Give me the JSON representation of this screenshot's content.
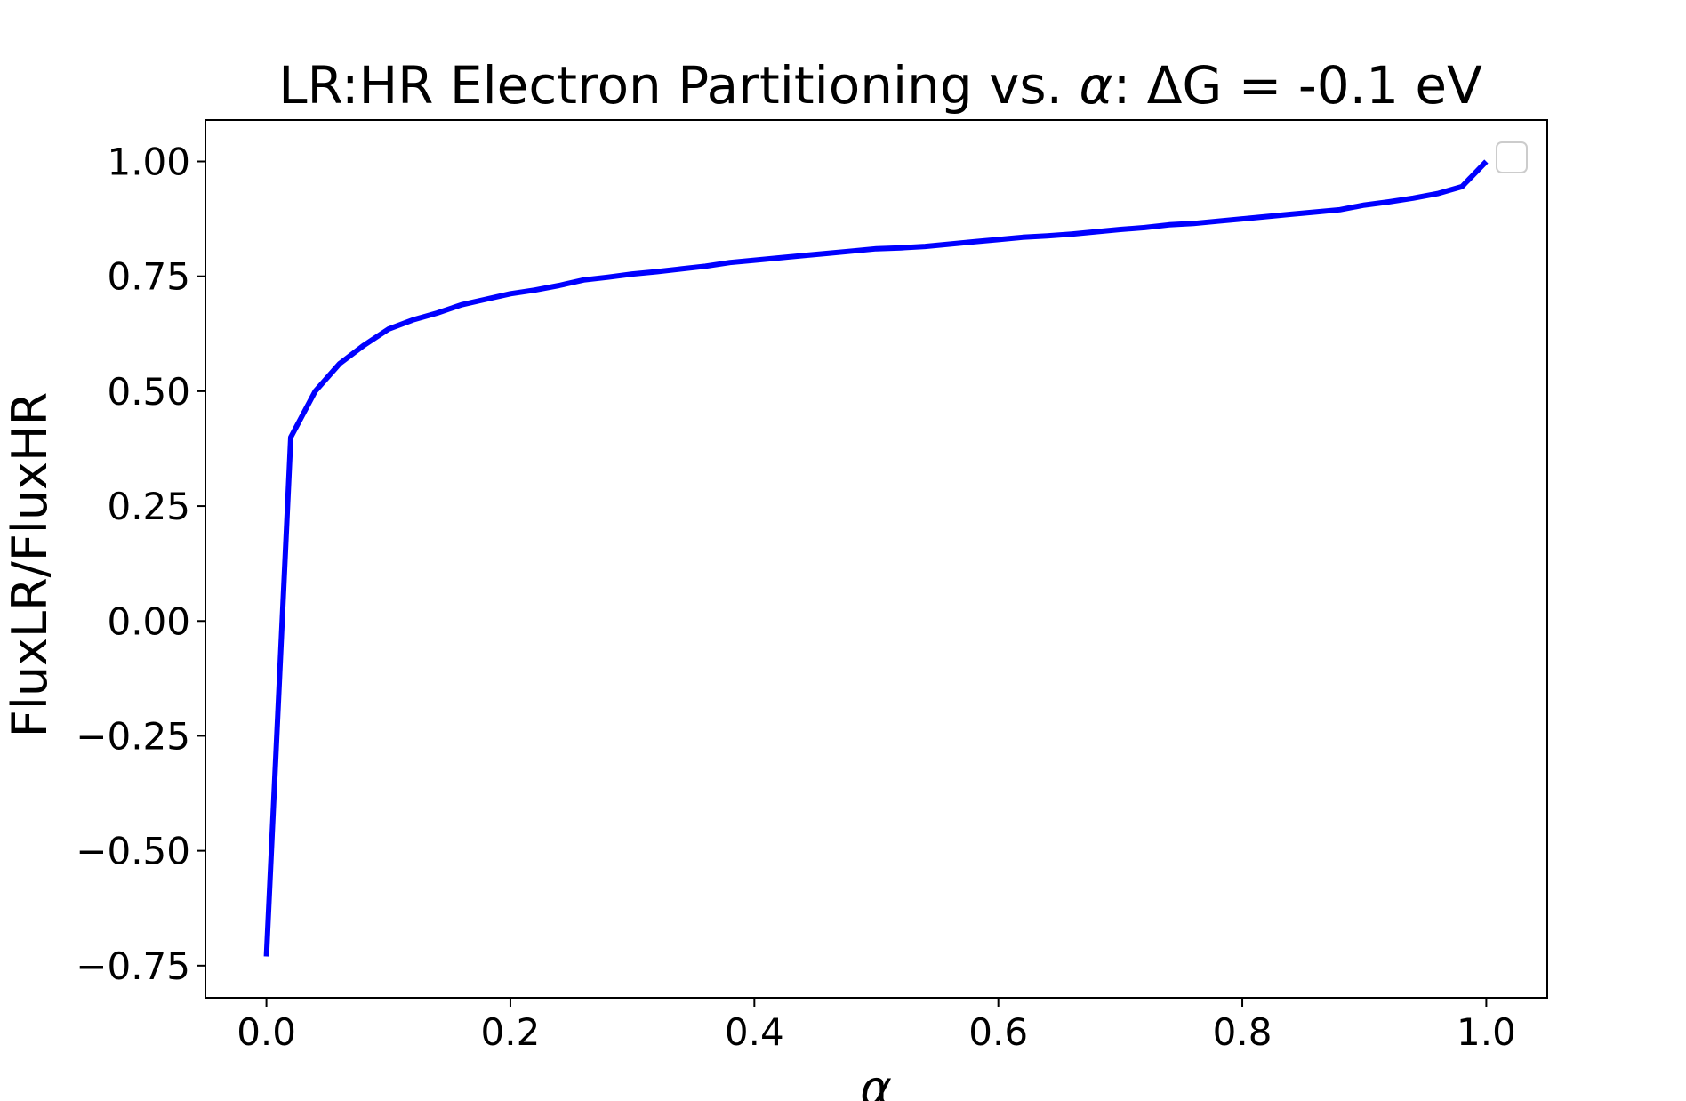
{
  "chart_data": {
    "type": "line",
    "title_prefix": "LR:HR Electron Partitioning vs. ",
    "title_alpha": "α",
    "title_suffix": ": ΔG = -0.1 eV",
    "xlabel": "α",
    "ylabel": "FluxLR/FluxHR",
    "xlim": [
      -0.05,
      1.05
    ],
    "ylim": [
      -0.82,
      1.09
    ],
    "x_ticks": [
      0.0,
      0.2,
      0.4,
      0.6,
      0.8,
      1.0
    ],
    "x_tick_labels": [
      "0.0",
      "0.2",
      "0.4",
      "0.6",
      "0.8",
      "1.0"
    ],
    "y_ticks": [
      1.0,
      0.75,
      0.5,
      0.25,
      0.0,
      -0.25,
      -0.5,
      -0.75
    ],
    "y_tick_labels": [
      "1.00",
      "0.75",
      "0.50",
      "0.25",
      "0.00",
      "−0.25",
      "−0.50",
      "−0.75"
    ],
    "grid": false,
    "legend": "top-right, empty",
    "series": [
      {
        "color": "#0000ff",
        "x": [
          0.0,
          0.02,
          0.04,
          0.06,
          0.08,
          0.1,
          0.12,
          0.14,
          0.16,
          0.18,
          0.2,
          0.22,
          0.24,
          0.26,
          0.28,
          0.3,
          0.32,
          0.34,
          0.36,
          0.38,
          0.4,
          0.42,
          0.44,
          0.46,
          0.48,
          0.5,
          0.52,
          0.54,
          0.56,
          0.58,
          0.6,
          0.62,
          0.64,
          0.66,
          0.68,
          0.7,
          0.72,
          0.74,
          0.76,
          0.78,
          0.8,
          0.82,
          0.84,
          0.86,
          0.88,
          0.9,
          0.92,
          0.94,
          0.96,
          0.98,
          1.0
        ],
        "y": [
          -0.73,
          0.4,
          0.5,
          0.56,
          0.6,
          0.635,
          0.655,
          0.67,
          0.688,
          0.7,
          0.712,
          0.72,
          0.73,
          0.742,
          0.748,
          0.755,
          0.76,
          0.766,
          0.772,
          0.78,
          0.785,
          0.79,
          0.795,
          0.8,
          0.805,
          0.81,
          0.812,
          0.815,
          0.82,
          0.825,
          0.83,
          0.835,
          0.838,
          0.842,
          0.847,
          0.852,
          0.856,
          0.862,
          0.865,
          0.87,
          0.875,
          0.88,
          0.885,
          0.89,
          0.895,
          0.905,
          0.912,
          0.92,
          0.93,
          0.945,
          1.0
        ]
      }
    ]
  }
}
